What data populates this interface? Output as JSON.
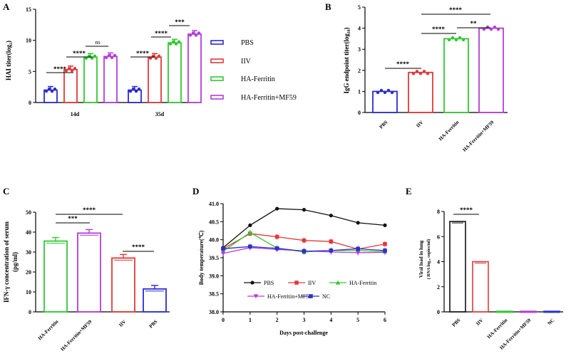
{
  "colors": {
    "PBS": "#2b2bd0",
    "IIV": "#e03a3a",
    "HA-Ferritin": "#31c931",
    "HA-Ferritin+MF59": "#b23ed8",
    "NC": "#3030c8",
    "axis": "#000000"
  },
  "chart_data": [
    {
      "panel_letter": "A",
      "type": "bar",
      "ylabel": "HAI titer(log₂)",
      "ylim": [
        0,
        15
      ],
      "yticks": [
        "0",
        "5",
        "10",
        "15"
      ],
      "categories": [
        "14d",
        "35d"
      ],
      "series": [
        {
          "name": "PBS",
          "values": [
            2,
            2
          ]
        },
        {
          "name": "IIV",
          "values": [
            5.3,
            7.3
          ]
        },
        {
          "name": "HA-Ferritin",
          "values": [
            7.3,
            9.6
          ]
        },
        {
          "name": "HA-Ferritin+MF59",
          "values": [
            7.4,
            11.0
          ]
        }
      ],
      "legend": [
        "PBS",
        "IIV",
        "HA-Ferritin",
        "HA-Ferritin+MF59"
      ],
      "legend_position": "right",
      "significance": [
        "****",
        "****",
        "ns",
        "****",
        "****",
        "***"
      ]
    },
    {
      "panel_letter": "B",
      "type": "bar",
      "ylabel": "IgG endpoint titer(log₁₀)",
      "ylim": [
        0,
        5
      ],
      "yticks": [
        "0",
        "1",
        "2",
        "3",
        "4",
        "5"
      ],
      "categories": [
        "PBS",
        "IIV",
        "HA-Ferritin",
        "HA-Ferritin+MF59"
      ],
      "values": [
        1.0,
        1.9,
        3.5,
        4.0
      ],
      "significance": [
        "****",
        "****",
        "**",
        "****"
      ]
    },
    {
      "panel_letter": "C",
      "type": "bar",
      "ylabel": "IFN-γ concentration of serum",
      "ylabel2": "(pg/ml)",
      "ylim": [
        0,
        50
      ],
      "yticks": [
        "0",
        "10",
        "20",
        "30",
        "40",
        "50"
      ],
      "categories": [
        "HA-Ferritin",
        "HA-Ferritin+MF59",
        "IIV",
        "PBS"
      ],
      "values": [
        35.5,
        39.5,
        27.0,
        11.5
      ],
      "significance": [
        "***",
        "****",
        "****"
      ]
    },
    {
      "panel_letter": "D",
      "type": "line",
      "ylabel": "Body temperature(℃)",
      "xlabel": "Days post-challenge",
      "x": [
        0,
        1,
        2,
        3,
        4,
        5,
        6
      ],
      "xticks": [
        "0",
        "1",
        "2",
        "3",
        "4",
        "5",
        "6"
      ],
      "ylim": [
        38.0,
        41.0
      ],
      "yticks": [
        "38.0",
        "38.5",
        "39.0",
        "39.5",
        "40.0",
        "40.5",
        "41.0"
      ],
      "series": [
        {
          "name": "PBS",
          "values": [
            39.78,
            40.4,
            40.86,
            40.83,
            40.67,
            40.47,
            40.4
          ]
        },
        {
          "name": "IIV",
          "values": [
            39.75,
            40.17,
            40.08,
            39.98,
            39.95,
            39.74,
            39.88
          ]
        },
        {
          "name": "HA-Ferritin",
          "values": [
            39.68,
            40.2,
            39.77,
            39.66,
            39.7,
            39.7,
            39.67
          ]
        },
        {
          "name": "HA-Ferritin+MF59",
          "values": [
            39.62,
            39.78,
            39.73,
            39.69,
            39.66,
            39.64,
            39.65
          ]
        },
        {
          "name": "NC",
          "values": [
            39.75,
            39.81,
            39.76,
            39.68,
            39.7,
            39.75,
            39.7
          ]
        }
      ],
      "legend_position": "bottom"
    },
    {
      "panel_letter": "E",
      "type": "bar",
      "ylabel": "Viral load in lung",
      "ylabel2": "( RNA log₁₀ copies/ml)",
      "ylim": [
        0,
        8
      ],
      "yticks": [
        "0",
        "2",
        "4",
        "6",
        "8"
      ],
      "categories": [
        "PBS",
        "IIV",
        "HA-Ferritin",
        "HA-Ferritin+MF59",
        "NC"
      ],
      "values": [
        7.2,
        4.0,
        0.05,
        0.05,
        0.05
      ],
      "significance": [
        "****"
      ]
    }
  ]
}
